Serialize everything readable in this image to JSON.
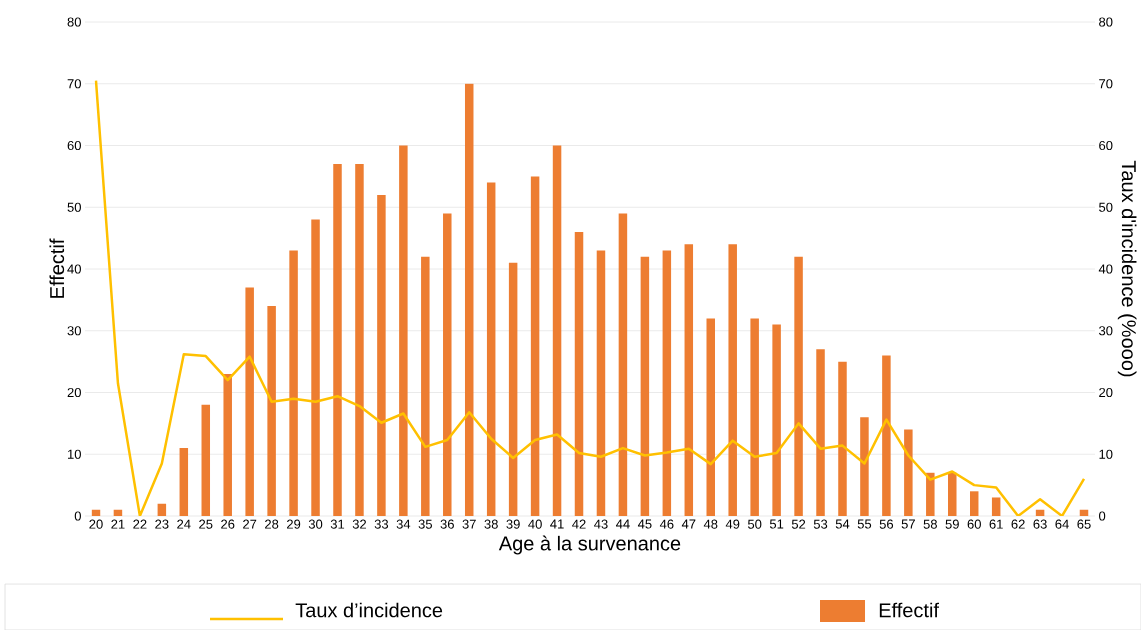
{
  "chart_data": {
    "type": "bar",
    "xlabel": "Age à la survenance",
    "ylabel": "Effectif",
    "y2label": "Taux d'incidence (%ooo)",
    "categories": [
      "20",
      "21",
      "22",
      "23",
      "24",
      "25",
      "26",
      "27",
      "28",
      "29",
      "30",
      "31",
      "32",
      "33",
      "34",
      "35",
      "36",
      "37",
      "38",
      "39",
      "40",
      "41",
      "42",
      "43",
      "44",
      "45",
      "46",
      "47",
      "48",
      "49",
      "50",
      "51",
      "52",
      "53",
      "54",
      "55",
      "56",
      "57",
      "58",
      "59",
      "60",
      "61",
      "62",
      "63",
      "64",
      "65"
    ],
    "series": [
      {
        "name": "Effectif",
        "color": "#ed7d31",
        "values": [
          1,
          1,
          0,
          2,
          11,
          18,
          23,
          37,
          34,
          43,
          48,
          57,
          57,
          52,
          60,
          42,
          49,
          70,
          54,
          41,
          55,
          60,
          46,
          43,
          49,
          42,
          43,
          44,
          32,
          44,
          32,
          31,
          42,
          27,
          25,
          16,
          26,
          14,
          7,
          7,
          4,
          3,
          0,
          1,
          0,
          1
        ]
      },
      {
        "name": "Taux d’incidence",
        "type": "line",
        "axis": "y2",
        "color": "#ffc000",
        "values": [
          70.5,
          21.5,
          0,
          8.5,
          26.2,
          25.9,
          22,
          25.8,
          18.5,
          19,
          18.5,
          19.4,
          17.8,
          15.1,
          16.6,
          11.2,
          12.3,
          16.8,
          12.5,
          9.4,
          12.3,
          13.2,
          10.2,
          9.6,
          11.0,
          9.8,
          10.3,
          10.9,
          8.4,
          12.2,
          9.6,
          10.2,
          15.0,
          10.9,
          11.4,
          8.5,
          15.6,
          9.8,
          5.9,
          7.2,
          5.0,
          4.6,
          0,
          2.7,
          0,
          6.0
        ]
      }
    ],
    "ylim": [
      0,
      80
    ],
    "yticks": [
      0,
      10,
      20,
      30,
      40,
      50,
      60,
      70,
      80
    ],
    "y2lim": [
      0,
      80
    ],
    "y2ticks": [
      0,
      10,
      20,
      30,
      40,
      50,
      60,
      70,
      80
    ],
    "grid": "y",
    "legend": "bottom",
    "marker": "none",
    "line_style": "solid"
  }
}
